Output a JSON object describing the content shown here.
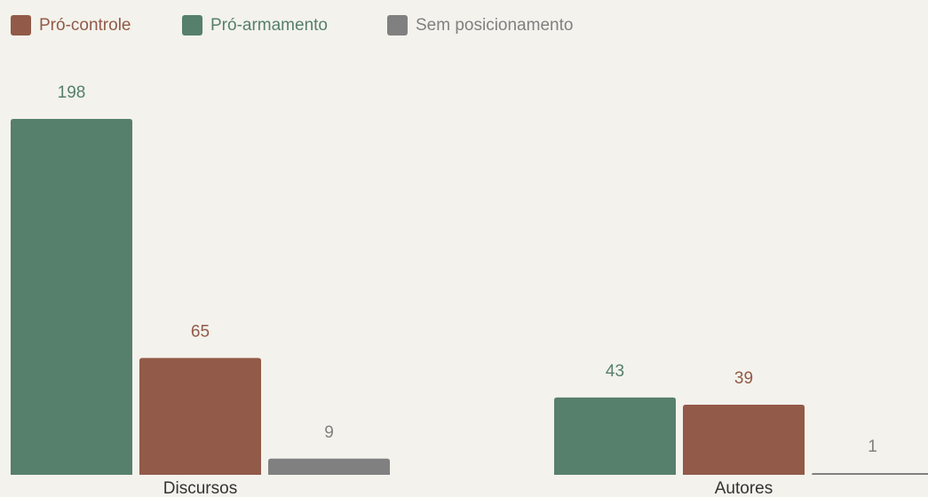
{
  "chart_data": {
    "type": "bar",
    "categories": [
      "Discursos",
      "Autores"
    ],
    "series": [
      {
        "name": "Pró-controle",
        "color": "#925a48",
        "values": [
          65,
          39
        ]
      },
      {
        "name": "Pró-armamento",
        "color": "#567f6c",
        "values": [
          198,
          43
        ]
      },
      {
        "name": "Sem posicionamento",
        "color": "#808080",
        "values": [
          9,
          1
        ]
      }
    ],
    "ylim": [
      0,
      220
    ],
    "legend": "top-left"
  }
}
